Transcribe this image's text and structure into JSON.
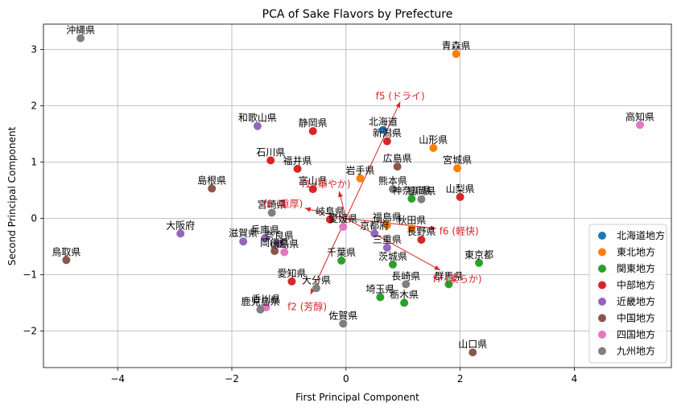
{
  "chart_data": {
    "type": "scatter",
    "title": "PCA of Sake Flavors by Prefecture",
    "xlabel": "First Principal Component",
    "ylabel": "Second Principal Component",
    "xlim": [
      -5.3,
      5.7
    ],
    "ylim": [
      -2.65,
      3.45
    ],
    "xticks": [
      -4,
      -2,
      0,
      2,
      4
    ],
    "yticks": [
      -2,
      -1,
      0,
      1,
      2,
      3
    ],
    "xtick_labels": [
      "−4",
      "−2",
      "0",
      "2",
      "4"
    ],
    "ytick_labels": [
      "−2",
      "−1",
      "0",
      "1",
      "2",
      "3"
    ],
    "grid": true,
    "legend_position": "lower-right",
    "series": [
      {
        "name": "北海道地方",
        "color": "#1f77b4",
        "points": [
          {
            "label": "北海道",
            "x": 0.65,
            "y": 1.57
          }
        ]
      },
      {
        "name": "東北地方",
        "color": "#ff7f0e",
        "points": [
          {
            "label": "青森県",
            "x": 1.93,
            "y": 2.92
          },
          {
            "label": "岩手県",
            "x": 0.25,
            "y": 0.71
          },
          {
            "label": "宮城県",
            "x": 1.95,
            "y": 0.89
          },
          {
            "label": "秋田県",
            "x": 1.15,
            "y": -0.18
          },
          {
            "label": "山形県",
            "x": 1.53,
            "y": 1.25
          },
          {
            "label": "福島県",
            "x": 0.72,
            "y": -0.12
          }
        ]
      },
      {
        "name": "関東地方",
        "color": "#2ca02c",
        "points": [
          {
            "label": "茨城県",
            "x": 0.82,
            "y": -0.82
          },
          {
            "label": "栃木県",
            "x": 1.02,
            "y": -1.5
          },
          {
            "label": "群馬県",
            "x": 1.8,
            "y": -1.17
          },
          {
            "label": "埼玉県",
            "x": 0.6,
            "y": -1.4
          },
          {
            "label": "千葉県",
            "x": -0.08,
            "y": -0.75
          },
          {
            "label": "東京都",
            "x": 2.33,
            "y": -0.79
          },
          {
            "label": "神奈川県",
            "x": 1.15,
            "y": 0.35
          }
        ]
      },
      {
        "name": "中部地方",
        "color": "#d62728",
        "points": [
          {
            "label": "新潟県",
            "x": 0.72,
            "y": 1.37
          },
          {
            "label": "富山県",
            "x": -0.58,
            "y": 0.52
          },
          {
            "label": "石川県",
            "x": -1.32,
            "y": 1.03
          },
          {
            "label": "福井県",
            "x": -0.85,
            "y": 0.88
          },
          {
            "label": "山梨県",
            "x": 2.0,
            "y": 0.38
          },
          {
            "label": "長野県",
            "x": 1.32,
            "y": -0.38
          },
          {
            "label": "岐阜県",
            "x": -0.28,
            "y": -0.02
          },
          {
            "label": "静岡県",
            "x": -0.58,
            "y": 1.55
          },
          {
            "label": "愛知県",
            "x": -0.95,
            "y": -1.12
          }
        ]
      },
      {
        "name": "近畿地方",
        "color": "#9467bd",
        "points": [
          {
            "label": "三重県",
            "x": 0.72,
            "y": -0.52
          },
          {
            "label": "滋賀県",
            "x": -1.8,
            "y": -0.41
          },
          {
            "label": "京都府",
            "x": 0.5,
            "y": -0.27
          },
          {
            "label": "大阪府",
            "x": -2.9,
            "y": -0.27
          },
          {
            "label": "兵庫県",
            "x": -1.42,
            "y": -0.35
          },
          {
            "label": "奈良県",
            "x": -1.17,
            "y": -0.45
          },
          {
            "label": "和歌山県",
            "x": -1.55,
            "y": 1.64
          }
        ]
      },
      {
        "name": "中国地方",
        "color": "#8c564b",
        "points": [
          {
            "label": "鳥取県",
            "x": -4.9,
            "y": -0.74
          },
          {
            "label": "島根県",
            "x": -2.35,
            "y": 0.53
          },
          {
            "label": "岡山県",
            "x": -1.25,
            "y": -0.58
          },
          {
            "label": "広島県",
            "x": 0.9,
            "y": 0.92
          },
          {
            "label": "山口県",
            "x": 2.22,
            "y": -2.38
          }
        ]
      },
      {
        "name": "四国地方",
        "color": "#e377c2",
        "points": [
          {
            "label": "徳島県",
            "x": -1.08,
            "y": -0.6
          },
          {
            "label": "香川県",
            "x": -1.4,
            "y": -1.58
          },
          {
            "label": "愛媛県",
            "x": -0.05,
            "y": -0.15
          },
          {
            "label": "高知県",
            "x": 5.15,
            "y": 1.66
          }
        ]
      },
      {
        "name": "九州地方",
        "color": "#7f7f7f",
        "points": [
          {
            "label": "福岡県",
            "x": 1.32,
            "y": 0.34
          },
          {
            "label": "佐賀県",
            "x": -0.05,
            "y": -1.87
          },
          {
            "label": "長崎県",
            "x": 1.05,
            "y": -1.17
          },
          {
            "label": "熊本県",
            "x": 0.82,
            "y": 0.52
          },
          {
            "label": "大分県",
            "x": -0.52,
            "y": -1.24
          },
          {
            "label": "宮崎県",
            "x": -1.3,
            "y": 0.1
          },
          {
            "label": "鹿児島県",
            "x": -1.5,
            "y": -1.62
          },
          {
            "label": "沖縄県",
            "x": -4.65,
            "y": 3.2
          }
        ]
      }
    ],
    "vectors": [
      {
        "label": "f5 (ドライ)",
        "x": 0.95,
        "y": 2.07,
        "lx": 0.95,
        "ly": 2.17
      },
      {
        "label": "f1 (華やか)",
        "x": -0.12,
        "y": 0.48,
        "lx": -0.35,
        "ly": 0.61
      },
      {
        "label": "f8 (重厚)",
        "x": -0.72,
        "y": 0.18,
        "lx": -1.1,
        "ly": 0.26
      },
      {
        "label": "f6 (軽快)",
        "x": 1.58,
        "y": -0.18,
        "lx": 1.98,
        "ly": -0.23
      },
      {
        "label": "f7 (柔らか)",
        "x": 1.65,
        "y": -0.92,
        "lx": 1.95,
        "ly": -1.08
      },
      {
        "label": "f2 (芳醇)",
        "x": -0.62,
        "y": -1.35,
        "lx": -0.68,
        "ly": -1.57
      }
    ],
    "vector_color": "#d62728"
  }
}
